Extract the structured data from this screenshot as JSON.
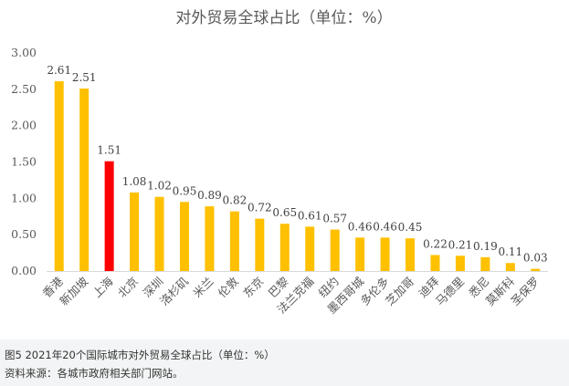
{
  "chart_data": {
    "type": "bar",
    "title": "对外贸易全球占比（单位：%）",
    "categories": [
      "香港",
      "新加坡",
      "上海",
      "北京",
      "深圳",
      "洛杉矶",
      "米兰",
      "伦敦",
      "东京",
      "巴黎",
      "法兰克福",
      "纽约",
      "墨西哥城",
      "多伦多",
      "芝加哥",
      "迪拜",
      "马德里",
      "悉尼",
      "莫斯科",
      "圣保罗"
    ],
    "values": [
      2.61,
      2.51,
      1.51,
      1.08,
      1.02,
      0.95,
      0.89,
      0.82,
      0.72,
      0.65,
      0.61,
      0.57,
      0.46,
      0.46,
      0.45,
      0.22,
      0.21,
      0.19,
      0.11,
      0.03
    ],
    "value_labels": [
      "2.61",
      "2.51",
      "1.51",
      "1.08",
      "1.02",
      "0.95",
      "0.89",
      "0.82",
      "0.72",
      "0.65",
      "0.61",
      "0.57",
      "0.46",
      "0.46",
      "0.45",
      "0.22",
      "0.21",
      "0.19",
      "0.11",
      "0.03"
    ],
    "ylim": [
      0,
      3
    ],
    "yticks": [
      "0.00",
      "0.50",
      "1.00",
      "1.50",
      "2.00",
      "2.50",
      "3.00"
    ],
    "highlight_index": 2,
    "colors": {
      "bar": "#FFC000",
      "highlight": "#FF0000",
      "axis": "#d9d9d9"
    },
    "grid": false,
    "legend": "none"
  },
  "caption": {
    "figure": "图5  2021年20个国际城市对外贸易全球占比（单位：%）",
    "source": "资料来源：各城市政府相关部门网站。"
  }
}
